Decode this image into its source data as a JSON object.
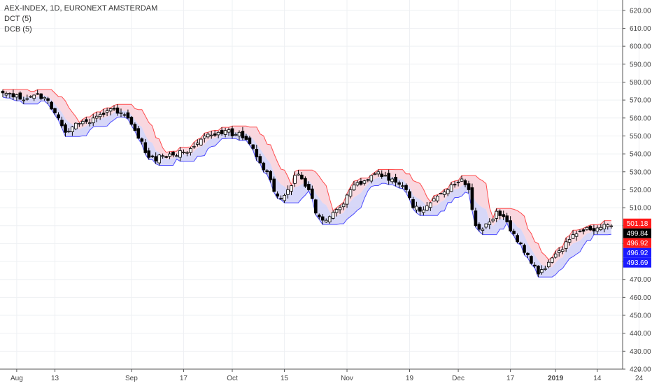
{
  "legend": {
    "symbol": "AEX-INDEX, 1D, EURONEXT AMSTERDAM",
    "indicator_1": "DCT (5)",
    "indicator_2": "DCB (5)"
  },
  "colors": {
    "up": "#ffffff",
    "down": "#000000",
    "candle_border": "#000000",
    "upper_band": "#ff4d4d",
    "lower_band": "#4d4dff",
    "fill_upper": "#f7c9d4",
    "fill_lower": "#c9c9f5",
    "grid": "#eef0f3"
  },
  "chart_data": {
    "type": "candlestick",
    "title": "AEX-INDEX, 1D, EURONEXT AMSTERDAM",
    "ylim": [
      420,
      625
    ],
    "y_ticks": [
      420,
      430,
      440,
      450,
      460,
      470,
      480,
      490,
      500,
      510,
      520,
      530,
      540,
      550,
      560,
      570,
      580,
      590,
      600,
      610,
      620
    ],
    "x_tick_labels": [
      {
        "label": "Aug",
        "index": 4
      },
      {
        "label": "13",
        "index": 15
      },
      {
        "label": "Sep",
        "index": 37
      },
      {
        "label": "17",
        "index": 52
      },
      {
        "label": "Oct",
        "index": 66
      },
      {
        "label": "15",
        "index": 81
      },
      {
        "label": "Nov",
        "index": 99
      },
      {
        "label": "19",
        "index": 117
      },
      {
        "label": "Dec",
        "index": 131
      },
      {
        "label": "17",
        "index": 146
      },
      {
        "label": "2019",
        "index": 159
      },
      {
        "label": "14",
        "index": 171
      },
      {
        "label": "24",
        "index": 183
      }
    ],
    "price_labels": [
      {
        "value": 501.18,
        "text": "501.18",
        "color": "#ff1a1a"
      },
      {
        "value": 499.84,
        "text": "499.84",
        "color": "#000000"
      },
      {
        "value": 496.92,
        "text": "496.92",
        "color": "#ff1a1a"
      },
      {
        "value": 496.92,
        "text": "496.92",
        "color": "#1a1aff"
      },
      {
        "value": 493.69,
        "text": "493.69",
        "color": "#1a1aff"
      }
    ],
    "close_anchors": [
      [
        0,
        574.0
      ],
      [
        4,
        573.0
      ],
      [
        6,
        570.0
      ],
      [
        8,
        572.0
      ],
      [
        10,
        573.5
      ],
      [
        12,
        571.5
      ],
      [
        14,
        565.0
      ],
      [
        16,
        560.0
      ],
      [
        18,
        552.0
      ],
      [
        20,
        555.0
      ],
      [
        22,
        557.0
      ],
      [
        24,
        558.0
      ],
      [
        26,
        560.0
      ],
      [
        28,
        562.0
      ],
      [
        30,
        564.0
      ],
      [
        32,
        565.0
      ],
      [
        34,
        563.0
      ],
      [
        36,
        560.0
      ],
      [
        38,
        553.0
      ],
      [
        40,
        547.0
      ],
      [
        42,
        538.0
      ],
      [
        44,
        536.0
      ],
      [
        46,
        539.0
      ],
      [
        48,
        540.0
      ],
      [
        50,
        539.0
      ],
      [
        52,
        541.0
      ],
      [
        54,
        543.0
      ],
      [
        56,
        546.0
      ],
      [
        58,
        550.0
      ],
      [
        60,
        550.5
      ],
      [
        62,
        552.0
      ],
      [
        64,
        553.0
      ],
      [
        66,
        550.0
      ],
      [
        68,
        552.0
      ],
      [
        70,
        548.0
      ],
      [
        72,
        543.0
      ],
      [
        74,
        535.0
      ],
      [
        76,
        530.0
      ],
      [
        78,
        519.0
      ],
      [
        80,
        515.0
      ],
      [
        82,
        520.0
      ],
      [
        84,
        528.0
      ],
      [
        86,
        526.0
      ],
      [
        88,
        520.0
      ],
      [
        90,
        507.0
      ],
      [
        92,
        503.0
      ],
      [
        94,
        505.0
      ],
      [
        96,
        509.0
      ],
      [
        98,
        512.0
      ],
      [
        100,
        520.0
      ],
      [
        102,
        524.0
      ],
      [
        104,
        525.0
      ],
      [
        106,
        528.0
      ],
      [
        108,
        530.0
      ],
      [
        110,
        528.0
      ],
      [
        112,
        526.0
      ],
      [
        114,
        523.0
      ],
      [
        116,
        520.0
      ],
      [
        118,
        510.0
      ],
      [
        120,
        508.0
      ],
      [
        122,
        511.0
      ],
      [
        124,
        515.0
      ],
      [
        126,
        518.0
      ],
      [
        128,
        520.0
      ],
      [
        130,
        523.0
      ],
      [
        132,
        526.0
      ],
      [
        134,
        520.0
      ],
      [
        136,
        500.0
      ],
      [
        138,
        498.0
      ],
      [
        140,
        502.0
      ],
      [
        142,
        508.0
      ],
      [
        144,
        505.0
      ],
      [
        146,
        497.0
      ],
      [
        148,
        491.0
      ],
      [
        150,
        485.0
      ],
      [
        152,
        479.0
      ],
      [
        154,
        473.0
      ],
      [
        156,
        476.0
      ],
      [
        158,
        482.0
      ],
      [
        160,
        486.0
      ],
      [
        162,
        491.0
      ],
      [
        164,
        495.0
      ],
      [
        166,
        497.0
      ],
      [
        168,
        499.0
      ],
      [
        170,
        497.0
      ],
      [
        172,
        499.0
      ],
      [
        174,
        500.5
      ],
      [
        175,
        499.84
      ]
    ]
  }
}
